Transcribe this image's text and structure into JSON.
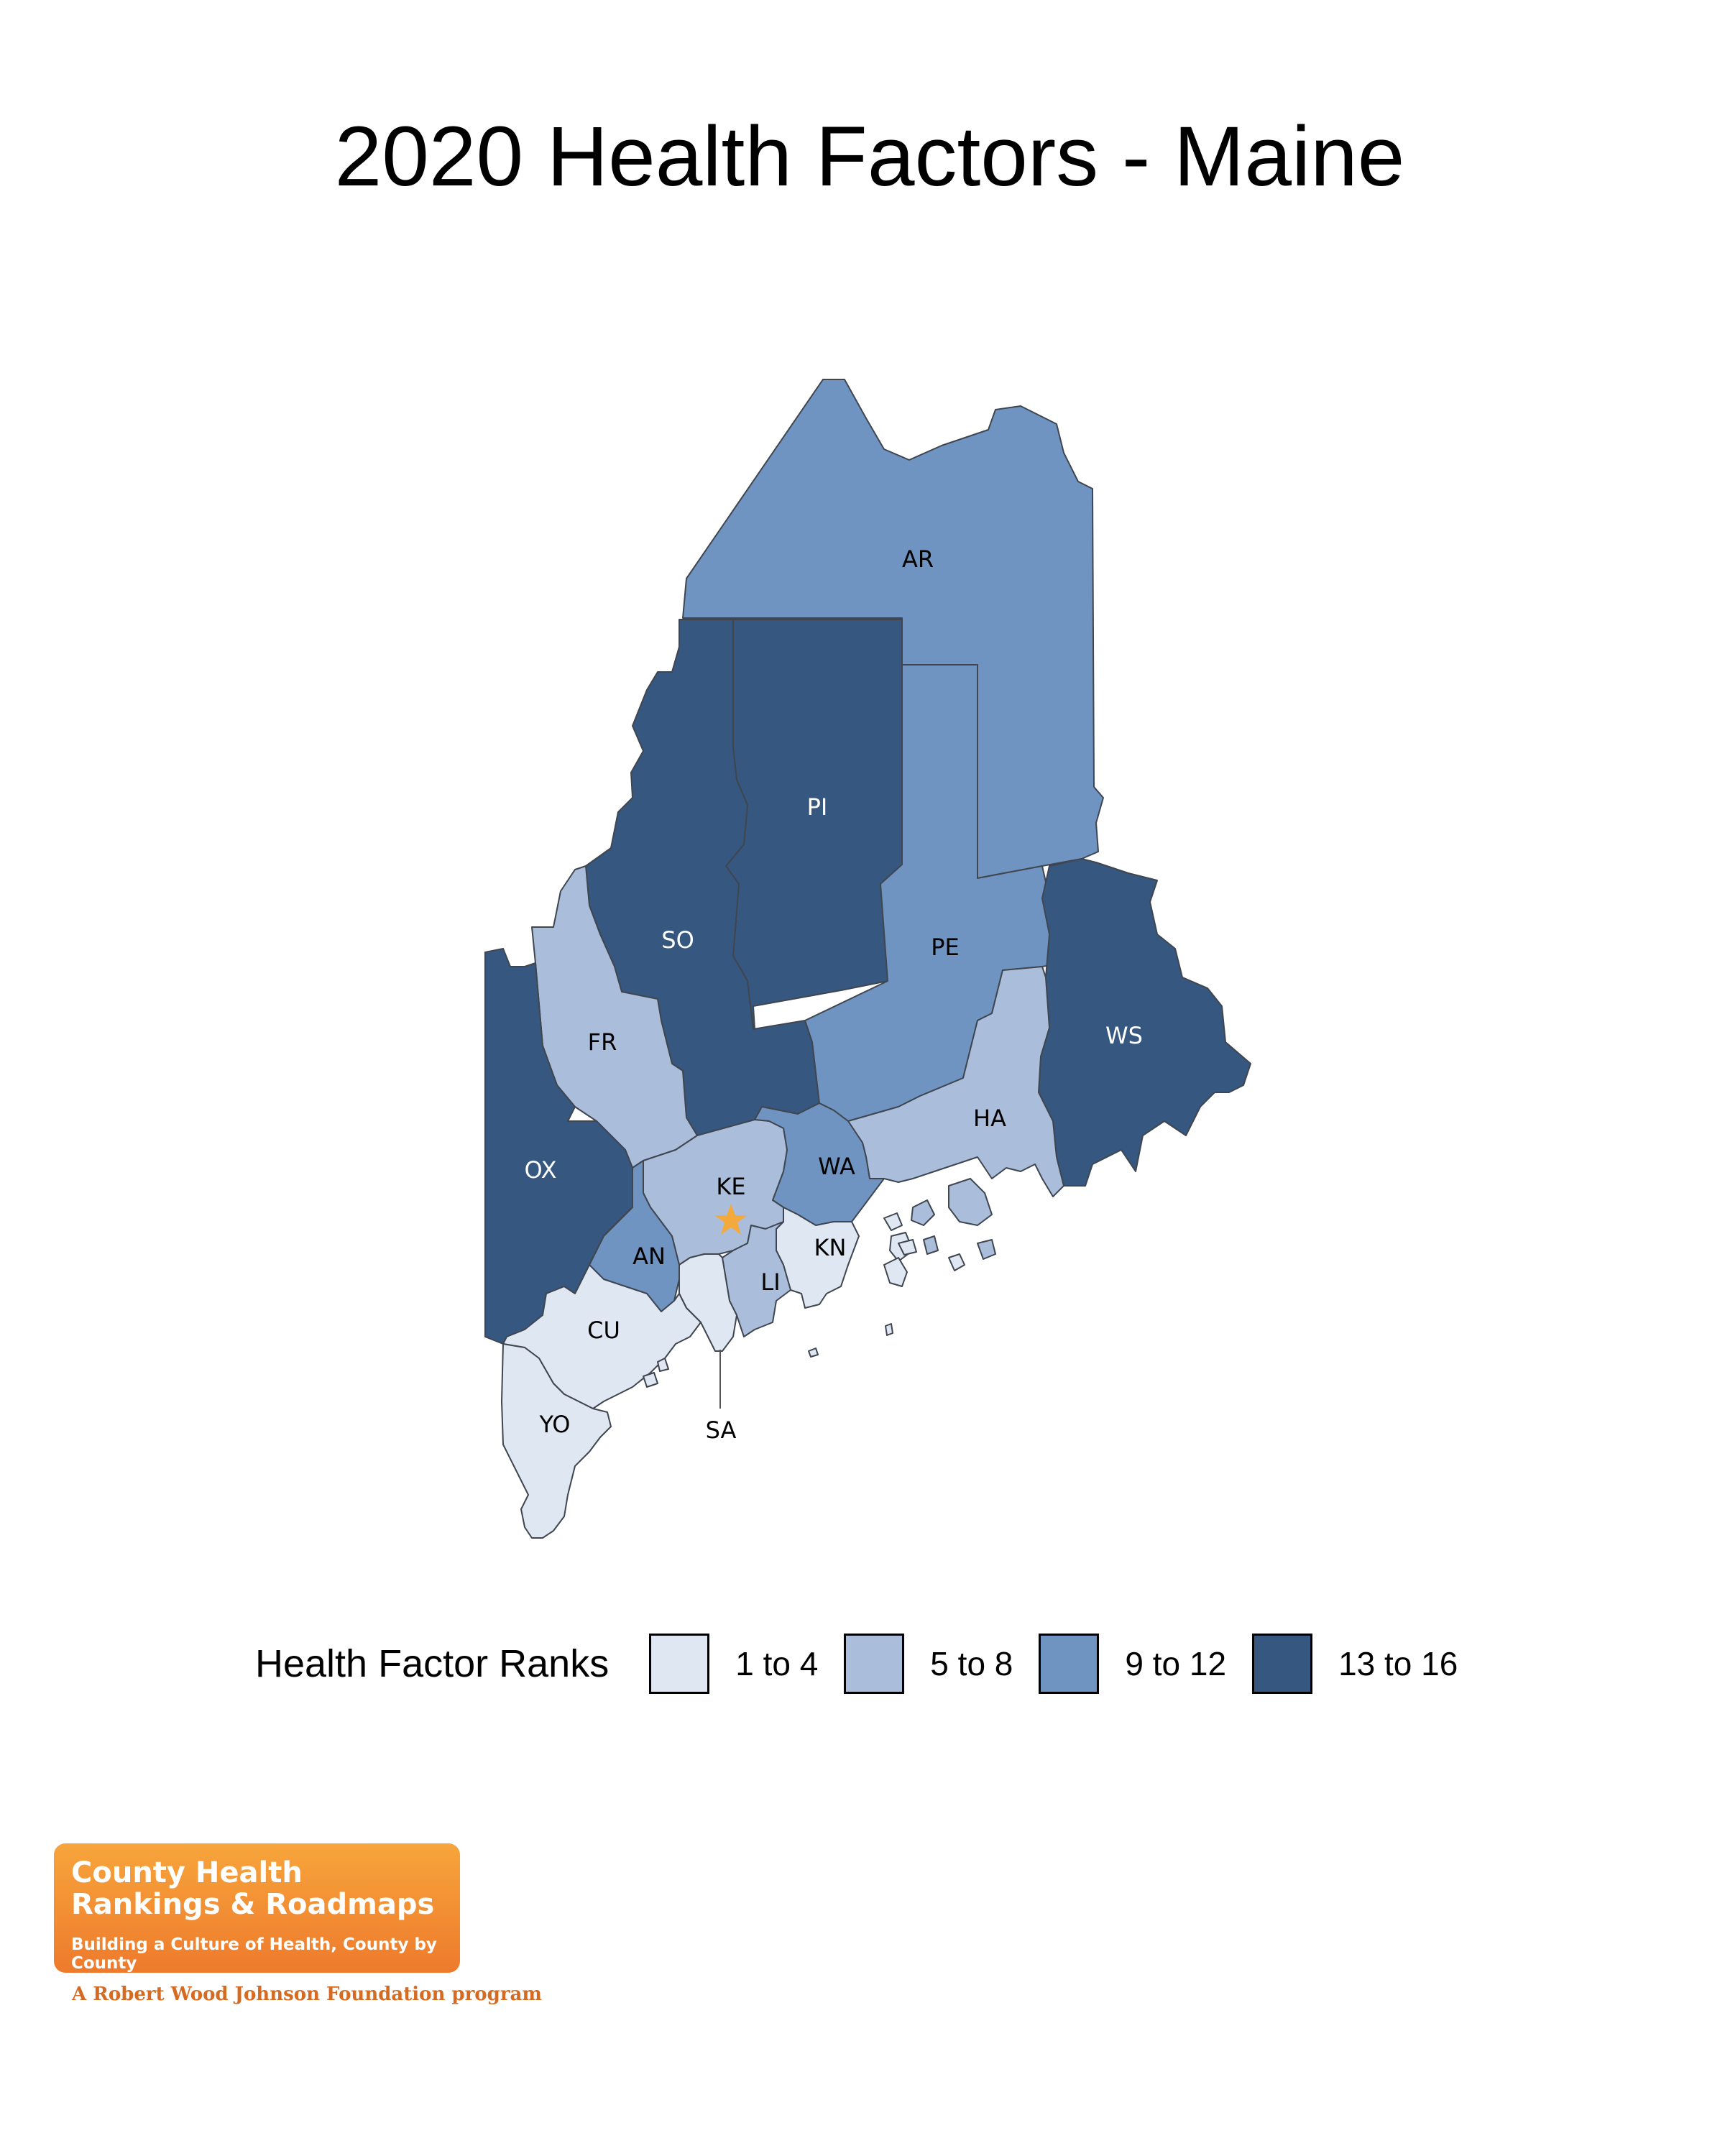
{
  "title": "2020 Health Factors - Maine",
  "legend": {
    "title": "Health Factor Ranks",
    "items": [
      {
        "label": "1 to 4",
        "color": "#dfe7f2"
      },
      {
        "label": "5 to 8",
        "color": "#aabedb"
      },
      {
        "label": "9 to 12",
        "color": "#6f94c1"
      },
      {
        "label": "13 to 16",
        "color": "#36577f"
      }
    ]
  },
  "counties": [
    {
      "code": "AR",
      "rank_group": "9 to 12"
    },
    {
      "code": "PI",
      "rank_group": "13 to 16"
    },
    {
      "code": "SO",
      "rank_group": "13 to 16"
    },
    {
      "code": "PE",
      "rank_group": "9 to 12"
    },
    {
      "code": "WS",
      "rank_group": "13 to 16"
    },
    {
      "code": "FR",
      "rank_group": "5 to 8"
    },
    {
      "code": "OX",
      "rank_group": "13 to 16"
    },
    {
      "code": "HA",
      "rank_group": "5 to 8"
    },
    {
      "code": "WA",
      "rank_group": "9 to 12"
    },
    {
      "code": "KE",
      "rank_group": "5 to 8"
    },
    {
      "code": "AN",
      "rank_group": "9 to 12"
    },
    {
      "code": "KN",
      "rank_group": "1 to 4"
    },
    {
      "code": "LI",
      "rank_group": "5 to 8"
    },
    {
      "code": "CU",
      "rank_group": "1 to 4"
    },
    {
      "code": "SA",
      "rank_group": "1 to 4"
    },
    {
      "code": "YO",
      "rank_group": "1 to 4"
    }
  ],
  "capital_marker": {
    "county": "KE",
    "icon": "star-icon",
    "color": "#f4a93c"
  },
  "logo": {
    "line1": "County Health",
    "line2": "Rankings & Roadmaps",
    "tagline": "Building a Culture of Health, County by County",
    "sub": "A Robert Wood Johnson Foundation program"
  }
}
